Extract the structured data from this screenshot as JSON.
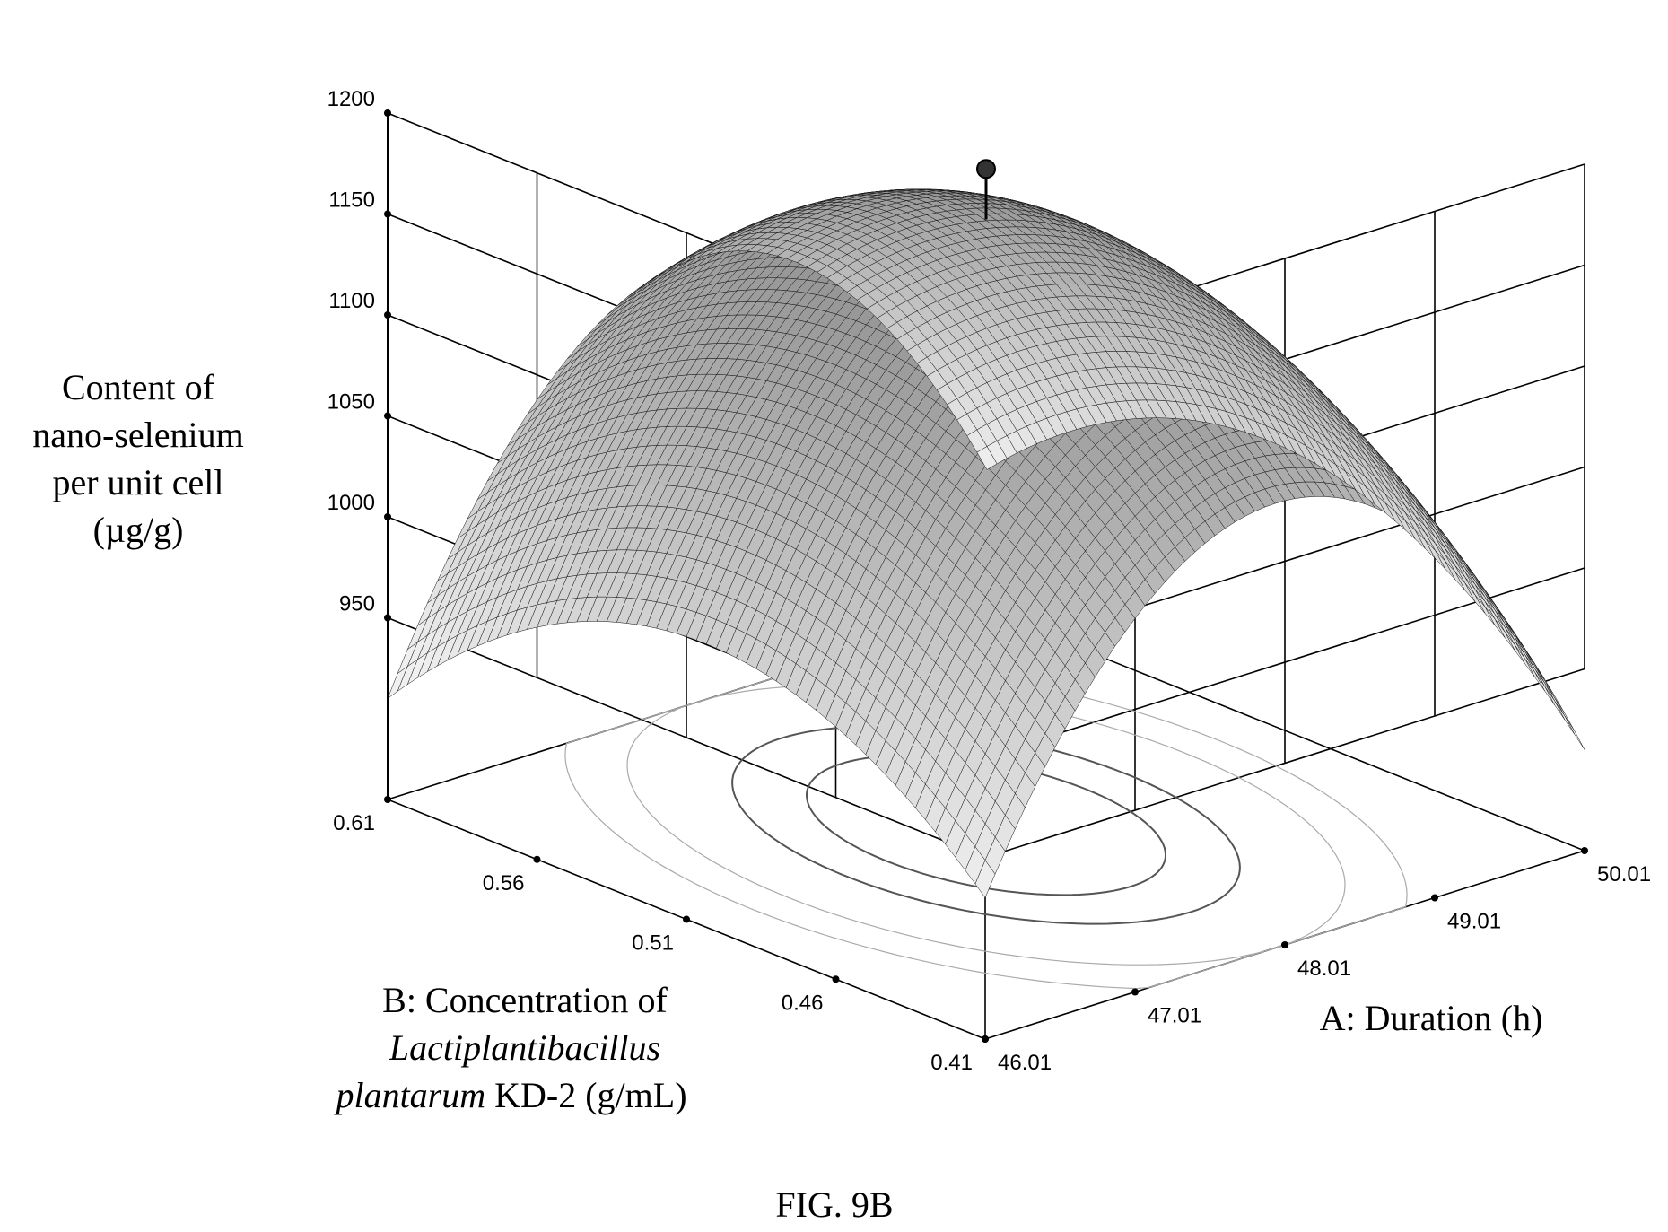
{
  "chart_data": {
    "type": "surface3d",
    "title": "",
    "caption": "FIG. 9B",
    "zlabel_lines": [
      "Content of",
      "nano-selenium",
      "per unit cell",
      "(µg/g)"
    ],
    "xlabel": "A: Duration (h)",
    "ylabel_line1": "B: Concentration of",
    "ylabel_species": "Lactiplantibacillus",
    "ylabel_species2": "plantarum",
    "ylabel_strain_unit": " KD-2 (g/mL)",
    "x_ticks": [
      "46.01",
      "47.01",
      "48.01",
      "49.01",
      "50.01"
    ],
    "y_ticks": [
      "0.41",
      "0.46",
      "0.51",
      "0.56",
      "0.61"
    ],
    "z_ticks": [
      "950",
      "1000",
      "1050",
      "1100",
      "1150",
      "1200"
    ],
    "xlim": [
      46.01,
      50.01
    ],
    "ylim": [
      0.41,
      0.61
    ],
    "zlim": [
      950,
      1200
    ],
    "surface_model": {
      "peak_x": 48.01,
      "peak_y": 0.51,
      "peak_value": 1160,
      "value_at_x_extremes": 1000,
      "value_at_y_extremes": 1080,
      "value_at_corner_x46_y061": 1000,
      "value_at_corner_x50_y041": 1000,
      "value_at_corner_x46_y041": 930
    },
    "optimum_point": {
      "x": 48.01,
      "y": 0.51,
      "z": 1185
    },
    "contour_levels": [
      1140,
      1120,
      1080,
      1050
    ],
    "colors": {
      "mesh": "#000000",
      "background": "#ffffff"
    }
  }
}
